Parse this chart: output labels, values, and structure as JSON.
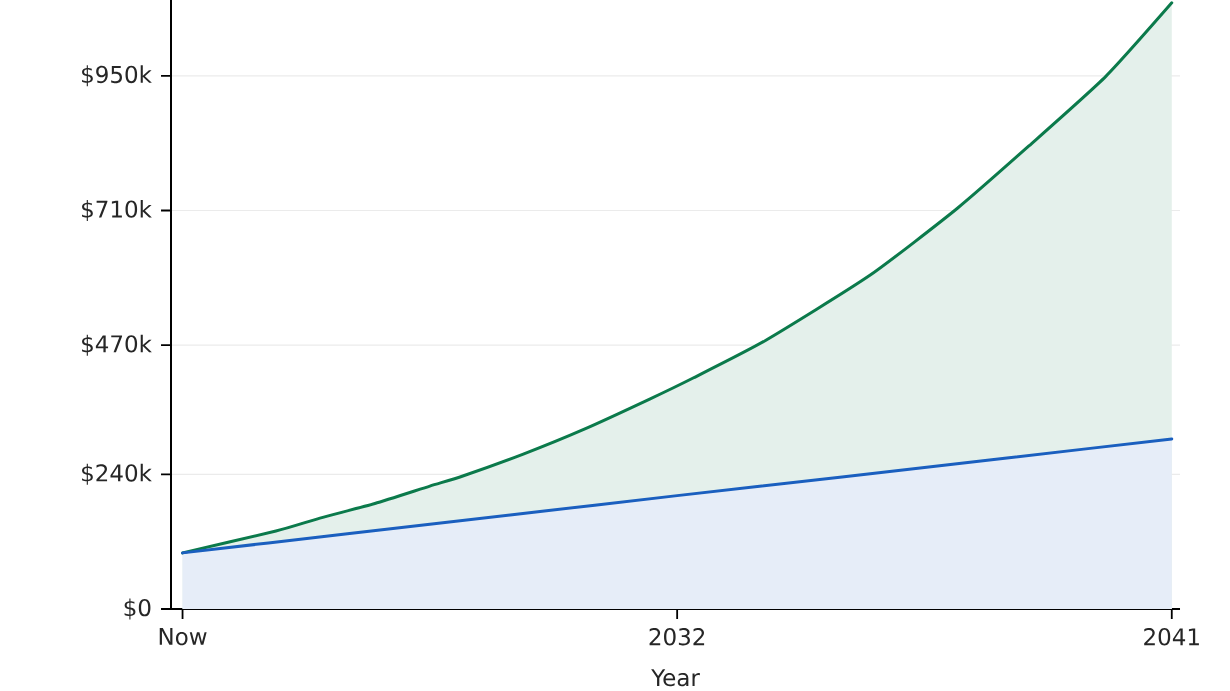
{
  "chart_data": {
    "type": "area",
    "xlabel": "Year",
    "xlim": [
      2022.79,
      2041.15
    ],
    "xticks": [
      {
        "value": 2023,
        "label": "Now"
      },
      2032,
      2041
    ],
    "ylim": [
      0,
      1085
    ],
    "yticks": [
      {
        "value": 0,
        "label": "$0"
      },
      {
        "value": 240,
        "label": "$240k"
      },
      {
        "value": 470,
        "label": "$470k"
      },
      {
        "value": 710,
        "label": "$710k"
      },
      {
        "value": 950,
        "label": "$950k"
      }
    ],
    "grid": "y",
    "marker": "none",
    "series": [
      {
        "color": "#0b7a4b",
        "x": [
          2023,
          2024.7,
          2025.5,
          2026.5,
          2027.5,
          2028.1,
          2029.2,
          2030.3,
          2031.5,
          2032.3,
          2033.6,
          2035.5,
          2037.1,
          2038.4,
          2039.8,
          2041
        ],
        "values": [
          100,
          139,
          162,
          188,
          219,
          237,
          276,
          320,
          374,
          412,
          478,
          594,
          714,
          825,
          949,
          1080
        ]
      },
      {
        "color": "#1a5fbf",
        "x": [
          2023,
          2026,
          2029,
          2032,
          2035,
          2038,
          2041
        ],
        "values": [
          100,
          134,
          168,
          202,
          235,
          269,
          303
        ]
      }
    ]
  }
}
